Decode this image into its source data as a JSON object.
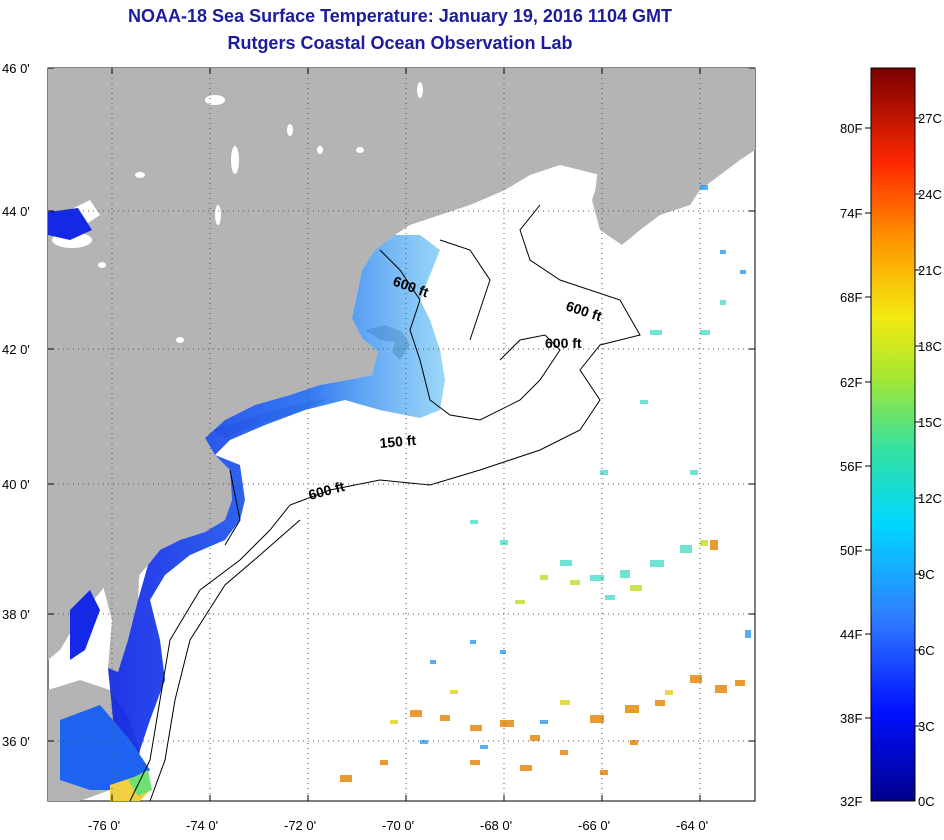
{
  "title": "NOAA-18 Sea Surface Temperature:  January 19, 2016 1104 GMT",
  "subtitle": "Rutgers Coastal Ocean Observation Lab",
  "lat_labels": [
    "46 0'",
    "44 0'",
    "42 0'",
    "40 0'",
    "38 0'",
    "36 0'"
  ],
  "lon_labels": [
    "-76 0'",
    "-74 0'",
    "-72 0'",
    "-70 0'",
    "-68 0'",
    "-66 0'",
    "-64 0'"
  ],
  "depth_contours": [
    "600 ft",
    "600 ft",
    "600 ft",
    "150 ft",
    "600 ft"
  ],
  "colorbar": {
    "fahrenheit": [
      "80F",
      "74F",
      "68F",
      "62F",
      "56F",
      "50F",
      "44F",
      "38F",
      "32F"
    ],
    "celsius": [
      "27C",
      "24C",
      "21C",
      "18C",
      "15C",
      "12C",
      "9C",
      "6C",
      "3C",
      "0C"
    ]
  },
  "colors": {
    "land": "#b4b4b4",
    "title": "#1c1c9c",
    "cold": "#1432e6",
    "warm": "#e69628"
  }
}
